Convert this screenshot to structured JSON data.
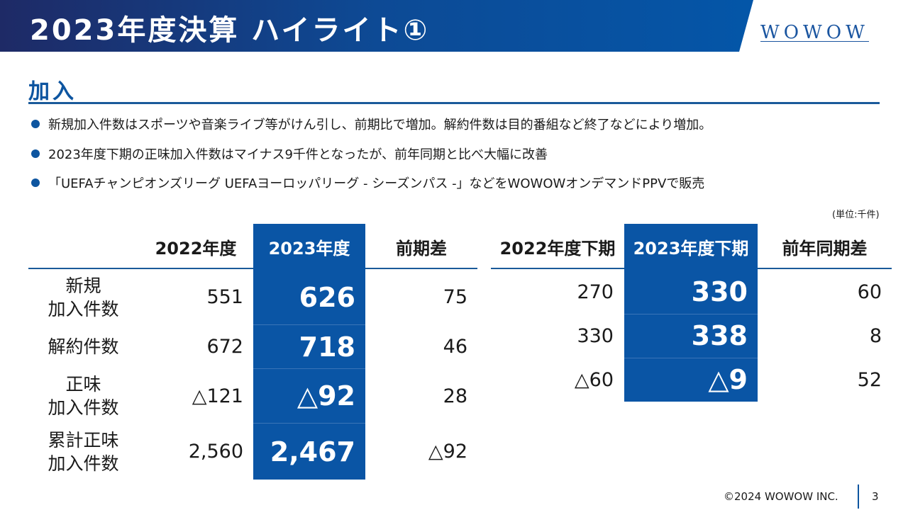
{
  "header": {
    "title": "2023年度決算 ハイライト①",
    "logo": "WOWOW"
  },
  "section": "加入",
  "bullets": [
    "新規加入件数はスポーツや音楽ライブ等がけん引し、前期比で増加。解約件数は目的番組など終了などにより増加。",
    "2023年度下期の正味加入件数はマイナス9千件となったが、前年同期と比べ大幅に改善",
    "「UEFAチャンピオンズリーグ UEFAヨーロッパリーグ - シーズンパス -」などをWOWOWオンデマンドPPVで販売"
  ],
  "unit": "(単位:千件)",
  "annual": {
    "headers": [
      "2022年度",
      "2023年度",
      "前期差"
    ],
    "rows": [
      {
        "label": "新規\n加入件数",
        "v2022": "551",
        "v2023": "626",
        "diff": "75"
      },
      {
        "label": "解約件数",
        "v2022": "672",
        "v2023": "718",
        "diff": "46"
      },
      {
        "label": "正味\n加入件数",
        "v2022": "△121",
        "v2023": "△92",
        "diff": "28"
      },
      {
        "label": "累計正味\n加入件数",
        "v2022": "2,560",
        "v2023": "2,467",
        "diff": "△92"
      }
    ]
  },
  "half": {
    "headers": [
      "2022年度下期",
      "2023年度下期",
      "前年同期差"
    ],
    "rows": [
      {
        "v2022": "270",
        "v2023": "330",
        "diff": "60"
      },
      {
        "v2022": "330",
        "v2023": "338",
        "diff": "8"
      },
      {
        "v2022": "△60",
        "v2023": "△9",
        "diff": "52"
      }
    ]
  },
  "footer": {
    "copyright": "©2024 WOWOW INC.",
    "page": "3"
  },
  "colors": {
    "accent": "#0a55a5",
    "header_dark": "#1e2a66"
  }
}
